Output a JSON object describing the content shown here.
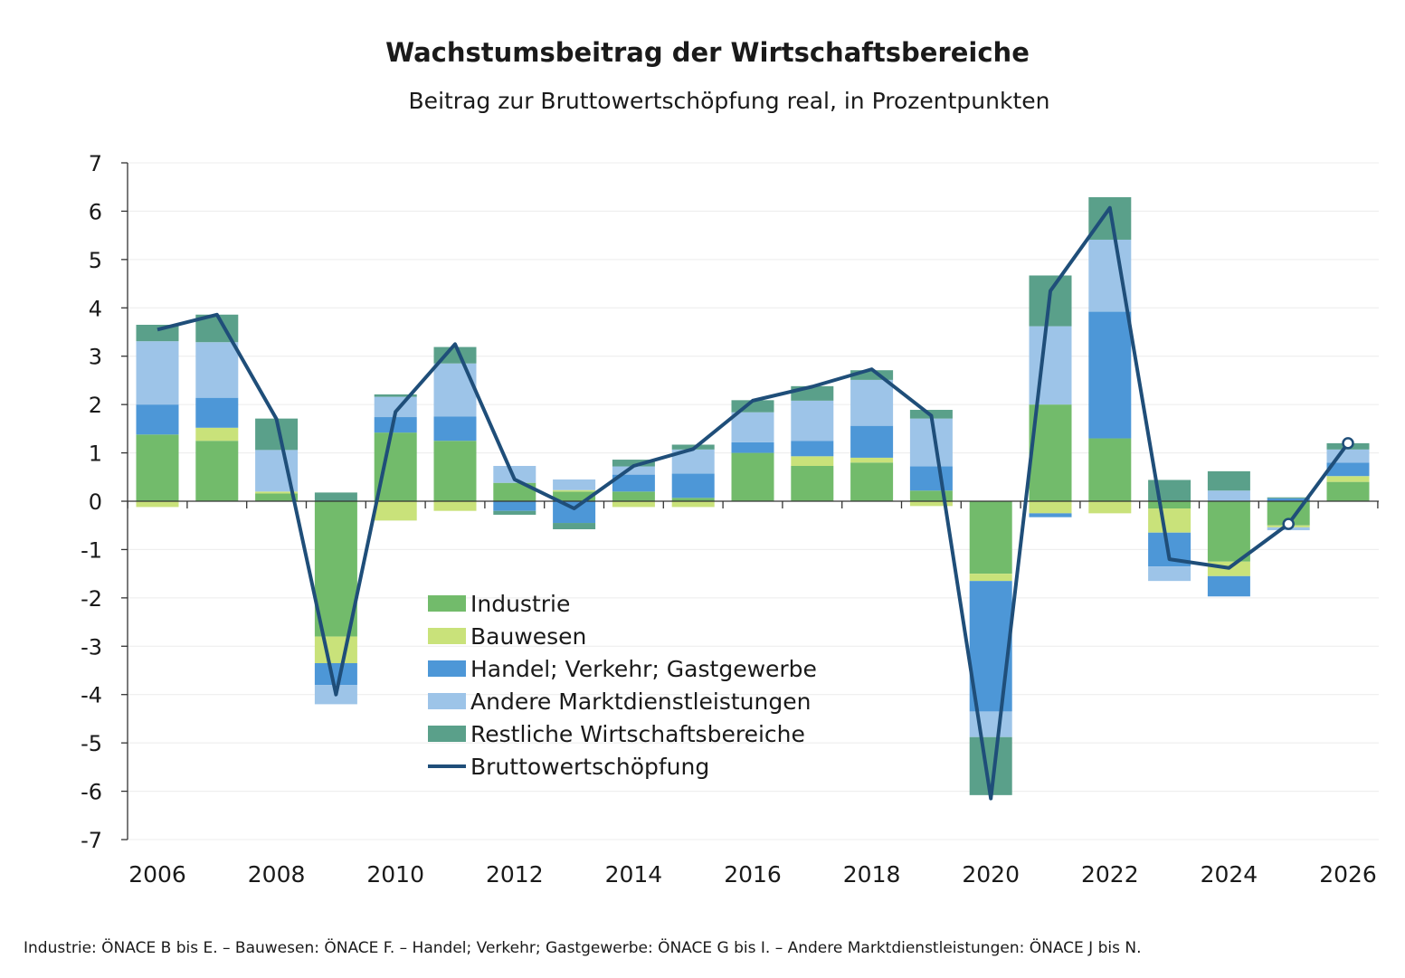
{
  "chart_data": {
    "type": "bar",
    "title": "Wachstumsbeitrag der Wirtschaftsbereiche",
    "subtitle": "Beitrag zur Bruttowertschöpfung real, in Prozentpunkten",
    "xlabel": "",
    "ylabel": "",
    "ylim": [
      -7,
      7
    ],
    "yticks": [
      "7",
      "6",
      "5",
      "4",
      "3",
      "2",
      "1",
      "0",
      "-1",
      "-2",
      "-3",
      "-4",
      "-5",
      "-6",
      "-7"
    ],
    "ytick_values": [
      7,
      6,
      5,
      4,
      3,
      2,
      1,
      0,
      -1,
      -2,
      -3,
      -4,
      -5,
      -6,
      -7
    ],
    "x": [
      2006,
      2007,
      2008,
      2009,
      2010,
      2011,
      2012,
      2013,
      2014,
      2015,
      2016,
      2017,
      2018,
      2019,
      2020,
      2021,
      2022,
      2023,
      2024,
      2025,
      2026
    ],
    "xtick_labels": [
      "2006",
      "2008",
      "2010",
      "2012",
      "2014",
      "2016",
      "2018",
      "2020",
      "2022",
      "2024",
      "2026"
    ],
    "xtick_years": [
      2006,
      2008,
      2010,
      2012,
      2014,
      2016,
      2018,
      2020,
      2022,
      2024,
      2026
    ],
    "grid": true,
    "legend_position": "center",
    "series": [
      {
        "name": "Industrie",
        "color": "#72bb6b",
        "values": [
          1.38,
          1.25,
          0.16,
          -2.8,
          1.42,
          1.25,
          0.38,
          0.2,
          0.2,
          0.07,
          1.0,
          0.73,
          0.8,
          0.22,
          -1.5,
          2.0,
          1.3,
          -0.15,
          -1.25,
          -0.5,
          0.4
        ]
      },
      {
        "name": "Bauwesen",
        "color": "#c9e27a",
        "values": [
          -0.12,
          0.27,
          0.04,
          -0.55,
          -0.4,
          -0.2,
          0.0,
          0.03,
          -0.12,
          -0.12,
          0.0,
          0.2,
          0.1,
          -0.1,
          -0.15,
          -0.25,
          -0.25,
          -0.5,
          -0.3,
          -0.04,
          0.12
        ]
      },
      {
        "name": "Handel; Verkehr; Gastgewerbe",
        "color": "#4d97d7",
        "values": [
          0.62,
          0.62,
          0.0,
          -0.45,
          0.32,
          0.5,
          -0.2,
          -0.45,
          0.35,
          0.5,
          0.22,
          0.32,
          0.66,
          0.5,
          -2.7,
          -0.08,
          2.62,
          -0.7,
          -0.42,
          0.06,
          0.28
        ]
      },
      {
        "name": "Andere Marktdienstleistungen",
        "color": "#9dc4e8",
        "values": [
          1.31,
          1.15,
          0.86,
          -0.4,
          0.42,
          1.1,
          0.35,
          0.22,
          0.17,
          0.5,
          0.62,
          0.83,
          0.95,
          0.99,
          -0.53,
          1.62,
          1.49,
          -0.3,
          0.22,
          -0.06,
          0.27
        ]
      },
      {
        "name": "Restliche Wirtschaftsbereiche",
        "color": "#5aa08a",
        "values": [
          0.34,
          0.57,
          0.65,
          0.18,
          0.05,
          0.34,
          -0.08,
          -0.13,
          0.14,
          0.1,
          0.25,
          0.3,
          0.2,
          0.18,
          -1.2,
          1.05,
          0.88,
          0.44,
          0.4,
          0.02,
          0.13
        ]
      }
    ],
    "line": {
      "name": "Bruttowertschöpfung",
      "color": "#1f4e79",
      "values": [
        3.55,
        3.86,
        1.7,
        -4.0,
        1.85,
        3.25,
        0.45,
        -0.15,
        0.73,
        1.08,
        2.08,
        2.37,
        2.73,
        1.77,
        -6.15,
        4.35,
        6.07,
        -1.2,
        -1.38,
        -0.47,
        1.2
      ],
      "forecast_markers": [
        2025,
        2026
      ]
    },
    "footnote": "Industrie: ÖNACE B bis E. – Bauwesen: ÖNACE F. – Handel; Verkehr; Gastgewerbe: ÖNACE G bis I. – Andere Marktdienstleistungen: ÖNACE J bis N."
  }
}
